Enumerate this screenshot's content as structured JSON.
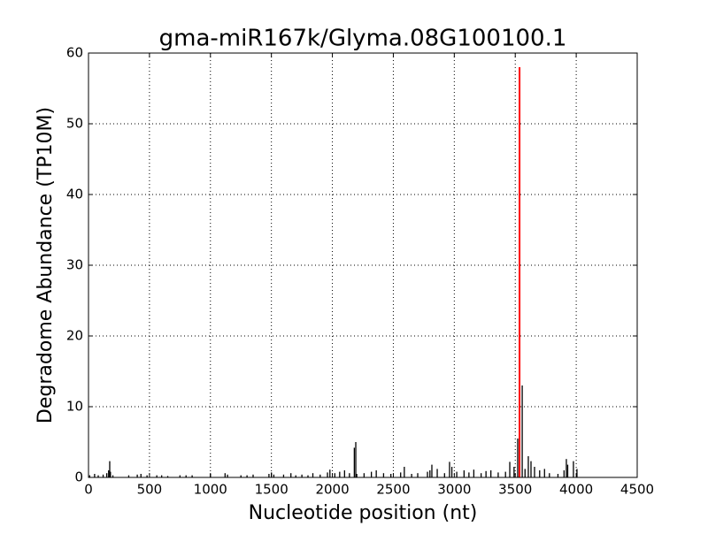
{
  "chart_data": {
    "type": "stem",
    "title": "gma-miR167k/Glyma.08G100100.1",
    "xlabel": "Nucleotide position (nt)",
    "ylabel": "Degradome Abundance (TP10M)",
    "xlim": [
      0,
      4500
    ],
    "xticks": [
      0,
      500,
      1000,
      1500,
      2000,
      2500,
      3000,
      3500,
      4000,
      4500
    ],
    "ylim": [
      0,
      60
    ],
    "yticks": [
      0,
      10,
      20,
      30,
      40,
      50,
      60
    ],
    "grid": true,
    "series": [
      {
        "color": "#000000",
        "x": [
          10,
          50,
          80,
          120,
          150,
          165,
          174,
          180,
          200,
          330,
          400,
          430,
          480,
          560,
          600,
          650,
          750,
          800,
          850,
          1000,
          1120,
          1140,
          1250,
          1300,
          1350,
          1480,
          1500,
          1520,
          1600,
          1660,
          1700,
          1750,
          1800,
          1840,
          1900,
          1960,
          1980,
          2020,
          2060,
          2100,
          2140,
          2180,
          2192,
          2200,
          2260,
          2320,
          2360,
          2420,
          2480,
          2560,
          2590,
          2650,
          2700,
          2780,
          2800,
          2816,
          2860,
          2920,
          2961,
          2980,
          3020,
          3080,
          3120,
          3160,
          3220,
          3260,
          3300,
          3360,
          3420,
          3455,
          3490,
          3520,
          3557,
          3580,
          3607,
          3629,
          3658,
          3700,
          3740,
          3780,
          3850,
          3900,
          3919,
          3930,
          3977,
          4006
        ],
        "values": [
          0.3,
          0.5,
          0.3,
          0.4,
          0.6,
          1.0,
          2.3,
          0.8,
          0.3,
          0.3,
          0.4,
          0.5,
          0.3,
          0.3,
          0.3,
          0.2,
          0.3,
          0.3,
          0.3,
          0.5,
          0.6,
          0.4,
          0.3,
          0.3,
          0.4,
          0.5,
          0.7,
          0.4,
          0.4,
          0.6,
          0.3,
          0.4,
          0.3,
          0.6,
          0.4,
          0.7,
          1.1,
          0.6,
          0.8,
          1.0,
          0.6,
          4.2,
          5.0,
          0.5,
          0.6,
          0.8,
          1.0,
          0.6,
          0.5,
          0.7,
          1.5,
          0.5,
          0.6,
          0.8,
          1.0,
          1.8,
          1.2,
          0.6,
          2.2,
          1.5,
          0.8,
          1.0,
          0.7,
          1.1,
          0.6,
          0.9,
          1.0,
          0.7,
          0.8,
          2.2,
          1.5,
          5.5,
          13.0,
          1.2,
          3.0,
          2.3,
          1.5,
          1.0,
          1.2,
          0.6,
          0.5,
          1.0,
          2.6,
          1.8,
          2.3,
          1.2
        ]
      },
      {
        "color": "#ff0000",
        "x": [
          3535
        ],
        "values": [
          58
        ]
      }
    ]
  }
}
